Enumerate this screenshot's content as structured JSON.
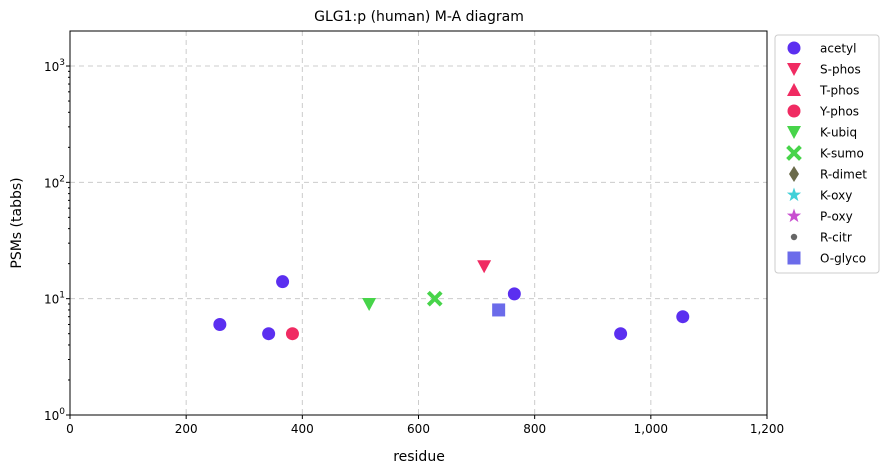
{
  "chart_data": {
    "type": "scatter",
    "title": "GLG1:p (human) M-A diagram",
    "xlabel": "residue",
    "ylabel": "PSMs (tabbs)",
    "xlim": [
      0,
      1200
    ],
    "ylim": [
      1,
      2000
    ],
    "y_scale": "log",
    "grid": true,
    "legend_position": "right, outside plot",
    "x_ticks": [
      {
        "value": 0,
        "label": "0"
      },
      {
        "value": 200,
        "label": "200"
      },
      {
        "value": 400,
        "label": "400"
      },
      {
        "value": 600,
        "label": "600"
      },
      {
        "value": 800,
        "label": "800"
      },
      {
        "value": 1000,
        "label": "1,000"
      },
      {
        "value": 1200,
        "label": "1,200"
      }
    ],
    "y_ticks": [
      {
        "value": 1,
        "base": "10",
        "exp": "0"
      },
      {
        "value": 10,
        "base": "10",
        "exp": "1"
      },
      {
        "value": 100,
        "base": "10",
        "exp": "2"
      },
      {
        "value": 1000,
        "base": "10",
        "exp": "3"
      }
    ],
    "series": [
      {
        "name": "acetyl",
        "marker": "circle",
        "color": "#5b2ff0",
        "points": [
          [
            258,
            6
          ],
          [
            342,
            5
          ],
          [
            366,
            14
          ],
          [
            765,
            11
          ],
          [
            948,
            5
          ],
          [
            1055,
            7
          ]
        ]
      },
      {
        "name": "S-phos",
        "marker": "triangle-down",
        "color": "#f02b62",
        "points": [
          [
            713,
            19
          ]
        ]
      },
      {
        "name": "T-phos",
        "marker": "triangle-up",
        "color": "#f02b62",
        "points": []
      },
      {
        "name": "Y-phos",
        "marker": "circle",
        "color": "#f02b62",
        "points": [
          [
            383,
            5
          ]
        ]
      },
      {
        "name": "K-ubiq",
        "marker": "triangle-down",
        "color": "#47d44a",
        "points": [
          [
            515,
            9
          ]
        ]
      },
      {
        "name": "K-sumo",
        "marker": "x",
        "color": "#47d44a",
        "points": [
          [
            628,
            10
          ]
        ]
      },
      {
        "name": "R-dimet",
        "marker": "diamond",
        "color": "#6b6b4a",
        "points": []
      },
      {
        "name": "K-oxy",
        "marker": "star",
        "color": "#40d0d8",
        "points": []
      },
      {
        "name": "P-oxy",
        "marker": "star",
        "color": "#c84fd0",
        "points": []
      },
      {
        "name": "R-citr",
        "marker": "dot",
        "color": "#666666",
        "points": []
      },
      {
        "name": "O-glyco",
        "marker": "square",
        "color": "#6b6bea",
        "points": [
          [
            738,
            8
          ]
        ]
      }
    ]
  }
}
